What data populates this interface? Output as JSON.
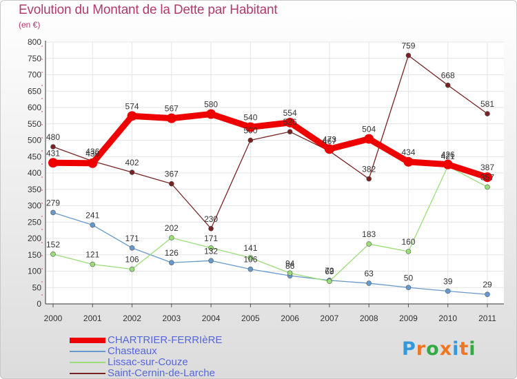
{
  "title": "Evolution du Montant de la Dette par Habitant",
  "unit": "(en €)",
  "brand": {
    "text": "Proxiti",
    "letters": [
      "P",
      "r",
      "o",
      "x",
      "i",
      "t",
      "i"
    ],
    "colors": [
      "#3399dd",
      "#ee7722",
      "#33aa44",
      "#ee7722",
      "#3399dd",
      "#ee7722",
      "#33aa44"
    ]
  },
  "chart_data": {
    "type": "line",
    "title": "Evolution du Montant de la Dette par Habitant",
    "ylabel": "(en €)",
    "xlabel": "",
    "ylim": [
      0,
      800
    ],
    "yticks": [
      0,
      50,
      100,
      150,
      200,
      250,
      300,
      350,
      400,
      450,
      500,
      550,
      600,
      650,
      700,
      750,
      800
    ],
    "grid": true,
    "legend_position": "bottom-left",
    "x": [
      "2000",
      "2001",
      "2002",
      "2003",
      "2004",
      "2005",
      "2006",
      "2007",
      "2008",
      "2009",
      "2010",
      "2011"
    ],
    "series": [
      {
        "name": "CHARTRIER-FERRIèRE",
        "color": "#ee0000",
        "values": [
          431,
          430,
          574,
          567,
          580,
          540,
          554,
          473,
          504,
          434,
          426,
          387
        ]
      },
      {
        "name": "Chasteaux",
        "color": "#6699cc",
        "values": [
          279,
          241,
          171,
          126,
          132,
          106,
          86,
          72,
          63,
          50,
          39,
          29
        ]
      },
      {
        "name": "Lissac-sur-Couze",
        "color": "#99dd77",
        "values": [
          152,
          121,
          106,
          202,
          171,
          141,
          94,
          69,
          183,
          160,
          421,
          357
        ]
      },
      {
        "name": "Saint-Cernin-de-Larche",
        "color": "#772222",
        "values": [
          480,
          436,
          402,
          367,
          230,
          500,
          526,
          467,
          382,
          759,
          668,
          581
        ]
      }
    ]
  }
}
